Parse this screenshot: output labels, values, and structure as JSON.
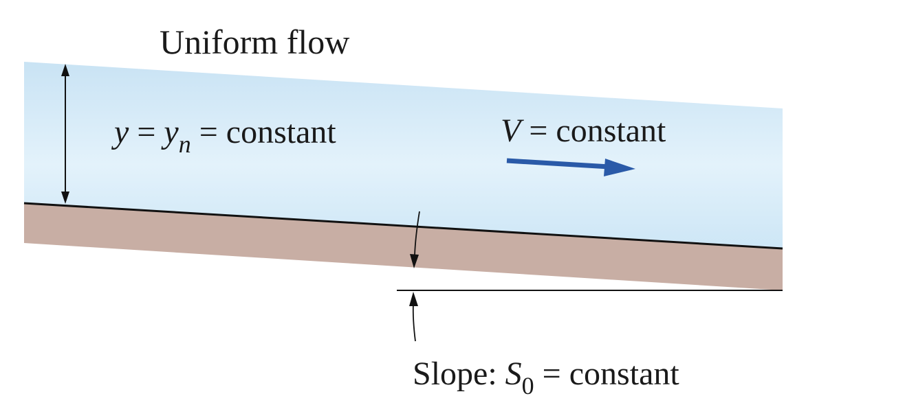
{
  "title": "Uniform flow",
  "depth_label": {
    "var_y": "y",
    "eq1": " = ",
    "var_yn": "y",
    "sub_n": "n",
    "eq2": " = constant"
  },
  "velocity_label": {
    "var_v": "V",
    "eq": " = constant"
  },
  "slope_label": {
    "prefix": "Slope: ",
    "var_s": "S",
    "sub_0": "0",
    "eq": " = constant"
  },
  "colors": {
    "water_top": "#cfe6f5",
    "water_bottom": "#d7ecf8",
    "ground": "#c7ada3",
    "arrow_blue": "#2a5aa8",
    "line": "#111111"
  }
}
